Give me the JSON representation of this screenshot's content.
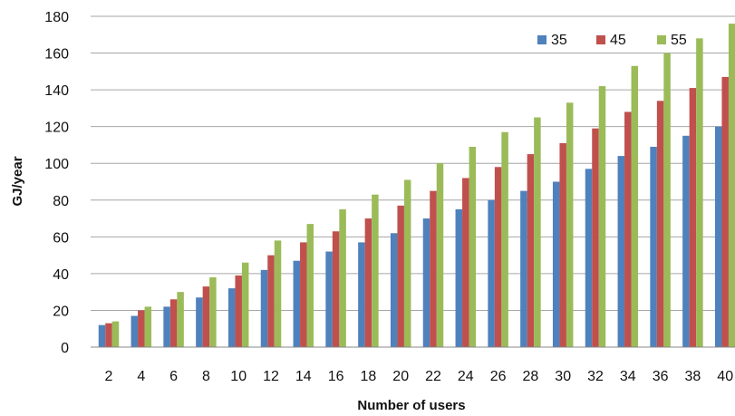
{
  "chart_data": {
    "type": "bar",
    "xlabel": "Number of users",
    "ylabel": "GJ/year",
    "ylim": [
      0,
      180
    ],
    "yticks": [
      0,
      20,
      40,
      60,
      80,
      100,
      120,
      140,
      160,
      180
    ],
    "categories": [
      "2",
      "4",
      "6",
      "8",
      "10",
      "12",
      "14",
      "16",
      "18",
      "20",
      "22",
      "24",
      "26",
      "28",
      "30",
      "32",
      "34",
      "36",
      "38",
      "40"
    ],
    "grid": true,
    "legend_position": "top-right",
    "series": [
      {
        "name": "35",
        "color": "#4F81BD",
        "values": [
          12,
          17,
          22,
          27,
          32,
          42,
          47,
          52,
          57,
          62,
          70,
          75,
          80,
          85,
          90,
          97,
          104,
          109,
          115,
          120
        ]
      },
      {
        "name": "45",
        "color": "#C0504D",
        "values": [
          13,
          20,
          26,
          33,
          39,
          50,
          57,
          63,
          70,
          77,
          85,
          92,
          98,
          105,
          111,
          119,
          128,
          134,
          141,
          147
        ]
      },
      {
        "name": "55",
        "color": "#9BBB59",
        "values": [
          14,
          22,
          30,
          38,
          46,
          58,
          67,
          75,
          83,
          91,
          100,
          109,
          117,
          125,
          133,
          142,
          153,
          160,
          168,
          176
        ]
      }
    ]
  }
}
